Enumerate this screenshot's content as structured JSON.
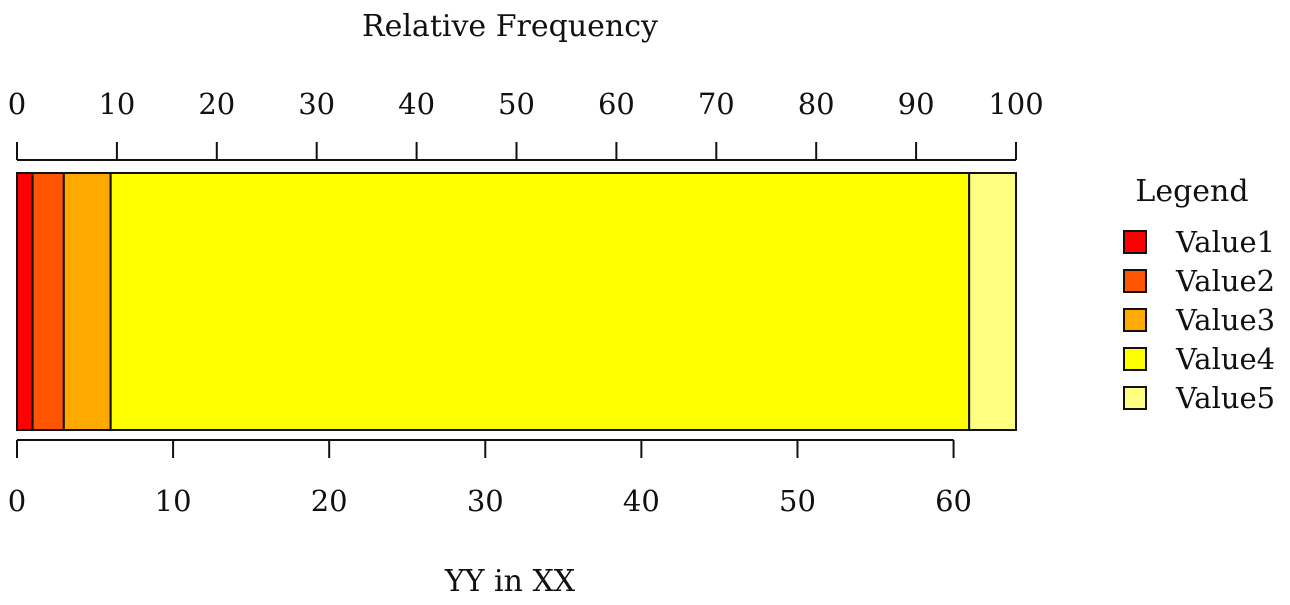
{
  "chart_data": {
    "type": "bar",
    "orientation": "horizontal",
    "stacked": true,
    "title": "Relative Frequency",
    "xlabel": "YY in XX",
    "top_axis": {
      "label": "Relative Frequency",
      "range": [
        0,
        100
      ],
      "ticks": [
        "0",
        "10",
        "20",
        "30",
        "40",
        "50",
        "60",
        "70",
        "80",
        "90",
        "100"
      ]
    },
    "bottom_axis": {
      "label": "YY in XX",
      "range": [
        0,
        64
      ],
      "ticks": [
        "0",
        "10",
        "20",
        "30",
        "40",
        "50",
        "60"
      ]
    },
    "series": [
      {
        "name": "Value1",
        "value": 1,
        "color": "#FF0000"
      },
      {
        "name": "Value2",
        "value": 2,
        "color": "#FF5500"
      },
      {
        "name": "Value3",
        "value": 3,
        "color": "#FFAA00"
      },
      {
        "name": "Value4",
        "value": 55,
        "color": "#FFFF00"
      },
      {
        "name": "Value5",
        "value": 3,
        "color": "#FFFF80"
      }
    ],
    "legend": {
      "title": "Legend",
      "position": "right"
    },
    "grid": false
  }
}
